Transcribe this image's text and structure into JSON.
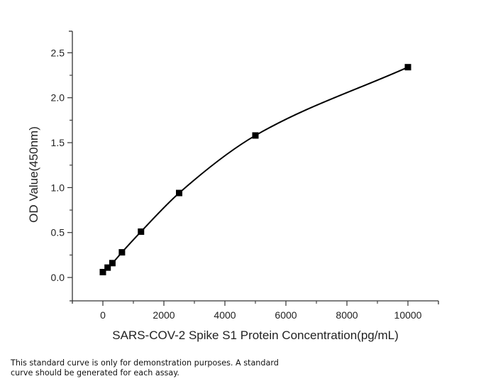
{
  "chart_data": {
    "type": "line",
    "title": "",
    "xlabel": "SARS-COV-2 Spike S1 Protein Concentration(pg/mL)",
    "ylabel": "OD Value(450nm)",
    "xlim": [
      -1000,
      11000
    ],
    "ylim": [
      -0.26,
      2.74
    ],
    "xticks": [
      0,
      2000,
      4000,
      6000,
      8000,
      10000
    ],
    "xtick_labels": [
      "0",
      "2000",
      "4000",
      "6000",
      "8000",
      "10000"
    ],
    "xminor_ticks": [
      1000,
      3000,
      5000,
      7000,
      9000
    ],
    "yticks": [
      0.0,
      0.5,
      1.0,
      1.5,
      2.0,
      2.5
    ],
    "ytick_labels": [
      "0.0",
      "0.5",
      "1.0",
      "1.5",
      "2.0",
      "2.5"
    ],
    "yminor_ticks": [
      0.25,
      0.75,
      1.25,
      1.75,
      2.25
    ],
    "grid": false,
    "marker": "square",
    "series": [
      {
        "name": "Standard curve",
        "color": "#000000",
        "x": [
          0,
          156,
          312,
          625,
          1250,
          2500,
          5000,
          10000
        ],
        "y": [
          0.06,
          0.11,
          0.16,
          0.28,
          0.51,
          0.94,
          1.58,
          2.34
        ]
      }
    ]
  },
  "caption": "This standard curve is only for demonstration purposes. A standard curve should be generated for each assay."
}
